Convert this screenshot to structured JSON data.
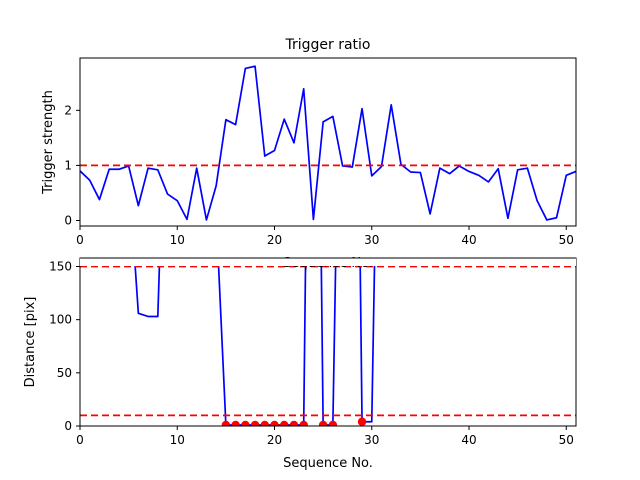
{
  "chart_data": [
    {
      "type": "line",
      "title": "Trigger ratio",
      "xlabel": "Sequence No.",
      "ylabel": "Trigger strength",
      "xlim": [
        0,
        51
      ],
      "ylim": [
        -0.1,
        2.95
      ],
      "xticks": [
        0,
        10,
        20,
        30,
        40,
        50
      ],
      "yticks": [
        0,
        1,
        2
      ],
      "threshold_lines": [
        1.0
      ],
      "series": [
        {
          "color": "#0000ff",
          "x": [
            0,
            1,
            2,
            3,
            4,
            5,
            6,
            7,
            8,
            9,
            10,
            11,
            12,
            13,
            14,
            15,
            16,
            17,
            18,
            19,
            20,
            21,
            22,
            23,
            24,
            25,
            26,
            27,
            28,
            29,
            30,
            31,
            32,
            33,
            34,
            35,
            36,
            37,
            38,
            39,
            40,
            41,
            42,
            43,
            44,
            45,
            46,
            47,
            48,
            49,
            50,
            51
          ],
          "y": [
            0.9,
            0.73,
            0.38,
            0.93,
            0.93,
            0.99,
            0.27,
            0.95,
            0.92,
            0.48,
            0.36,
            0.02,
            0.95,
            0.01,
            0.63,
            1.83,
            1.74,
            2.76,
            2.8,
            1.17,
            1.27,
            1.84,
            1.41,
            2.39,
            0.02,
            1.79,
            1.89,
            0.99,
            0.97,
            2.03,
            0.81,
            0.98,
            2.1,
            1.02,
            0.88,
            0.87,
            0.12,
            0.95,
            0.85,
            0.99,
            0.89,
            0.82,
            0.7,
            0.94,
            0.04,
            0.92,
            0.95,
            0.36,
            0.01,
            0.05,
            0.82,
            0.89
          ]
        }
      ]
    },
    {
      "type": "line",
      "title": "",
      "xlabel": "Sequence No.",
      "ylabel": "Distance [pix]",
      "xlim": [
        0,
        51
      ],
      "ylim": [
        0,
        158
      ],
      "xticks": [
        0,
        10,
        20,
        30,
        40,
        50
      ],
      "yticks": [
        0,
        50,
        100,
        150
      ],
      "threshold_lines": [
        150,
        10
      ],
      "series": [
        {
          "color": "#0000ff",
          "x": [
            5.6,
            6.0,
            7.0,
            8.0,
            8.2,
            14.2,
            15.0,
            16,
            17,
            18,
            19,
            20,
            21,
            22,
            23,
            23.2,
            24.8,
            25,
            26,
            26.3,
            28.8,
            29,
            30,
            30.3
          ],
          "y": [
            160,
            106,
            103,
            103,
            160,
            160,
            1,
            1,
            1,
            1,
            1,
            1,
            1,
            1,
            1,
            160,
            160,
            1,
            1,
            160,
            160,
            4,
            4,
            160
          ]
        },
        {
          "color": "#ff0000",
          "style": "markers",
          "x": [
            15,
            16,
            17,
            18,
            19,
            20,
            21,
            22,
            23,
            25,
            26,
            29
          ],
          "y": [
            1,
            1,
            1,
            1,
            1,
            1,
            1,
            1,
            1,
            1,
            1,
            4
          ]
        }
      ]
    }
  ]
}
